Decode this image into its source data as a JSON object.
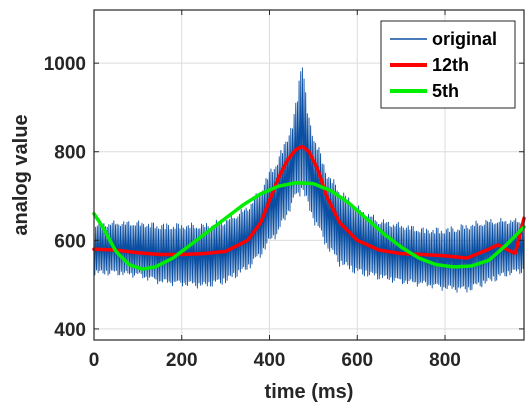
{
  "chart_data": {
    "type": "line",
    "xlabel": "time (ms)",
    "ylabel": "analog value",
    "xlim": [
      0,
      980
    ],
    "ylim": [
      375,
      1120
    ],
    "xticks": [
      0,
      200,
      400,
      600,
      800
    ],
    "yticks": [
      400,
      600,
      800,
      1000
    ],
    "grid": true,
    "legend_position": "top-right",
    "series": [
      {
        "name": "original",
        "color": "#0a4fa3",
        "style": "oscillating raw signal",
        "envelope_x": [
          0,
          50,
          100,
          150,
          200,
          250,
          300,
          350,
          380,
          400,
          420,
          440,
          455,
          465,
          470,
          475,
          480,
          490,
          510,
          530,
          560,
          600,
          650,
          700,
          750,
          800,
          850,
          900,
          950,
          980
        ],
        "envelope_upper": [
          640,
          645,
          645,
          640,
          640,
          640,
          650,
          680,
          720,
          760,
          790,
          840,
          880,
          950,
          1010,
          1025,
          960,
          880,
          820,
          760,
          720,
          680,
          650,
          640,
          630,
          630,
          640,
          650,
          650,
          650
        ],
        "envelope_lower": [
          520,
          520,
          515,
          500,
          495,
          490,
          500,
          530,
          560,
          590,
          610,
          650,
          680,
          690,
          700,
          700,
          690,
          660,
          620,
          580,
          540,
          520,
          510,
          500,
          495,
          485,
          480,
          500,
          520,
          525
        ]
      },
      {
        "name": "12th",
        "color": "#ff0000",
        "x": [
          0,
          50,
          100,
          150,
          200,
          250,
          300,
          350,
          380,
          400,
          420,
          440,
          460,
          475,
          490,
          510,
          530,
          560,
          600,
          650,
          700,
          750,
          800,
          850,
          900,
          920,
          940,
          960,
          980
        ],
        "y": [
          580,
          578,
          572,
          568,
          568,
          570,
          575,
          600,
          640,
          690,
          740,
          780,
          805,
          812,
          800,
          760,
          700,
          640,
          600,
          578,
          570,
          568,
          565,
          560,
          580,
          590,
          580,
          570,
          650
        ]
      },
      {
        "name": "5th",
        "color": "#00ee00",
        "x": [
          0,
          20,
          50,
          80,
          110,
          140,
          180,
          220,
          260,
          300,
          340,
          380,
          420,
          460,
          500,
          540,
          580,
          620,
          660,
          700,
          740,
          780,
          820,
          860,
          900,
          940,
          980
        ],
        "y": [
          660,
          630,
          575,
          545,
          535,
          540,
          560,
          590,
          620,
          650,
          680,
          705,
          722,
          730,
          728,
          712,
          685,
          650,
          615,
          585,
          560,
          545,
          540,
          542,
          555,
          590,
          630
        ]
      }
    ]
  }
}
